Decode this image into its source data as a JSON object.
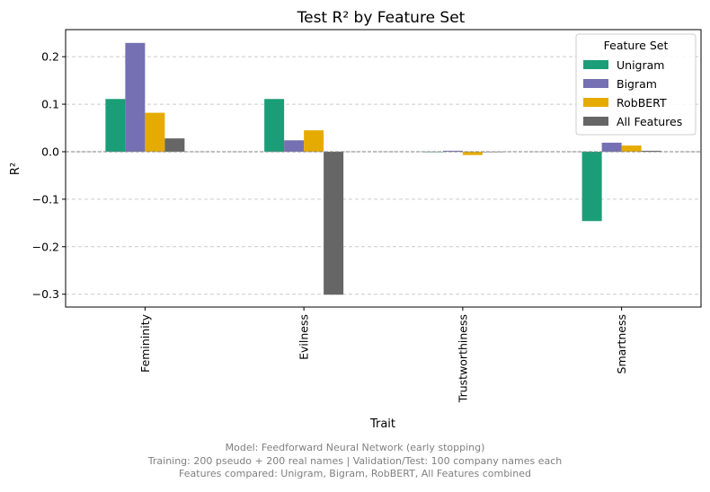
{
  "chart_data": {
    "type": "bar",
    "title": "Test R² by Feature Set",
    "xlabel": "Trait",
    "ylabel": "R²",
    "categories": [
      "Femininity",
      "Evilness",
      "Trustworthiness",
      "Smartness"
    ],
    "series": [
      {
        "name": "Unigram",
        "color": "#1b9e77",
        "values": [
          0.111,
          0.111,
          -0.001,
          -0.146
        ]
      },
      {
        "name": "Bigram",
        "color": "#7570b3",
        "values": [
          0.229,
          0.024,
          0.002,
          0.019
        ]
      },
      {
        "name": "RobBERT",
        "color": "#e6ab02",
        "values": [
          0.082,
          0.045,
          -0.007,
          0.013
        ]
      },
      {
        "name": "All Features",
        "color": "#666666",
        "values": [
          0.028,
          -0.301,
          0.0,
          0.002
        ]
      }
    ],
    "ylim": [
      -0.327,
      0.257
    ],
    "yticks": [
      -0.3,
      -0.2,
      -0.1,
      0.0,
      0.1,
      0.2
    ],
    "ytick_labels": [
      "−0.3",
      "−0.2",
      "−0.1",
      "0.0",
      "0.1",
      "0.2"
    ],
    "grid": "y-dashed",
    "reference_line": 0,
    "legend": {
      "title": "Feature Set",
      "position": "top-right"
    }
  },
  "caption": {
    "line1": "Model: Feedforward Neural Network (early stopping)",
    "line2": "Training: 200 pseudo + 200 real names | Validation/Test: 100 company names each",
    "line3": "Features compared: Unigram, Bigram, RobBERT, All Features combined"
  }
}
